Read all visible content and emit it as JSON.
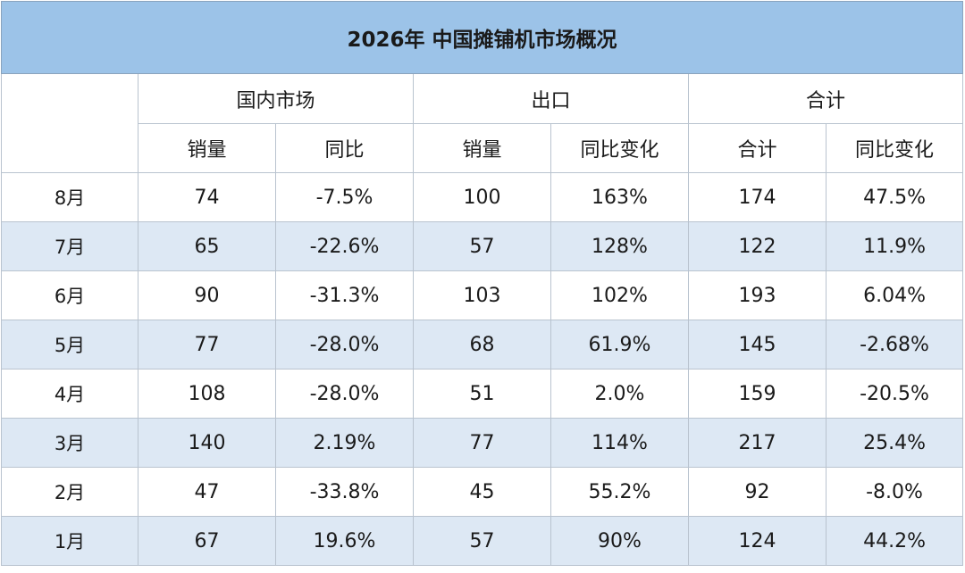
{
  "title": "2026年 中国摊铺机市场概况",
  "groups": {
    "domestic": "国内市场",
    "export": "出口",
    "total": "合计"
  },
  "subheaders": {
    "domestic_sales": "销量",
    "domestic_yoy": "同比",
    "export_sales": "销量",
    "export_yoy": "同比变化",
    "total_sum": "合计",
    "total_yoy": "同比变化"
  },
  "rows": [
    {
      "month": "8月",
      "domestic_sales": "74",
      "domestic_yoy": "-7.5%",
      "export_sales": "100",
      "export_yoy": "163%",
      "total": "174",
      "total_yoy": "47.5%"
    },
    {
      "month": "7月",
      "domestic_sales": "65",
      "domestic_yoy": "-22.6%",
      "export_sales": "57",
      "export_yoy": "128%",
      "total": "122",
      "total_yoy": "11.9%"
    },
    {
      "month": "6月",
      "domestic_sales": "90",
      "domestic_yoy": "-31.3%",
      "export_sales": "103",
      "export_yoy": "102%",
      "total": "193",
      "total_yoy": "6.04%"
    },
    {
      "month": "5月",
      "domestic_sales": "77",
      "domestic_yoy": "-28.0%",
      "export_sales": "68",
      "export_yoy": "61.9%",
      "total": "145",
      "total_yoy": "-2.68%"
    },
    {
      "month": "4月",
      "domestic_sales": "108",
      "domestic_yoy": "-28.0%",
      "export_sales": "51",
      "export_yoy": "2.0%",
      "total": "159",
      "total_yoy": "-20.5%"
    },
    {
      "month": "3月",
      "domestic_sales": "140",
      "domestic_yoy": "2.19%",
      "export_sales": "77",
      "export_yoy": "114%",
      "total": "217",
      "total_yoy": "25.4%"
    },
    {
      "month": "2月",
      "domestic_sales": "47",
      "domestic_yoy": "-33.8%",
      "export_sales": "45",
      "export_yoy": "55.2%",
      "total": "92",
      "total_yoy": "-8.0%"
    },
    {
      "month": "1月",
      "domestic_sales": "67",
      "domestic_yoy": "19.6%",
      "export_sales": "57",
      "export_yoy": "90%",
      "total": "124",
      "total_yoy": "44.2%"
    }
  ],
  "colors": {
    "title_bg": "#9cc3e8",
    "shade_row_bg": "#dde8f4",
    "grid_line": "#b9c3cf"
  }
}
